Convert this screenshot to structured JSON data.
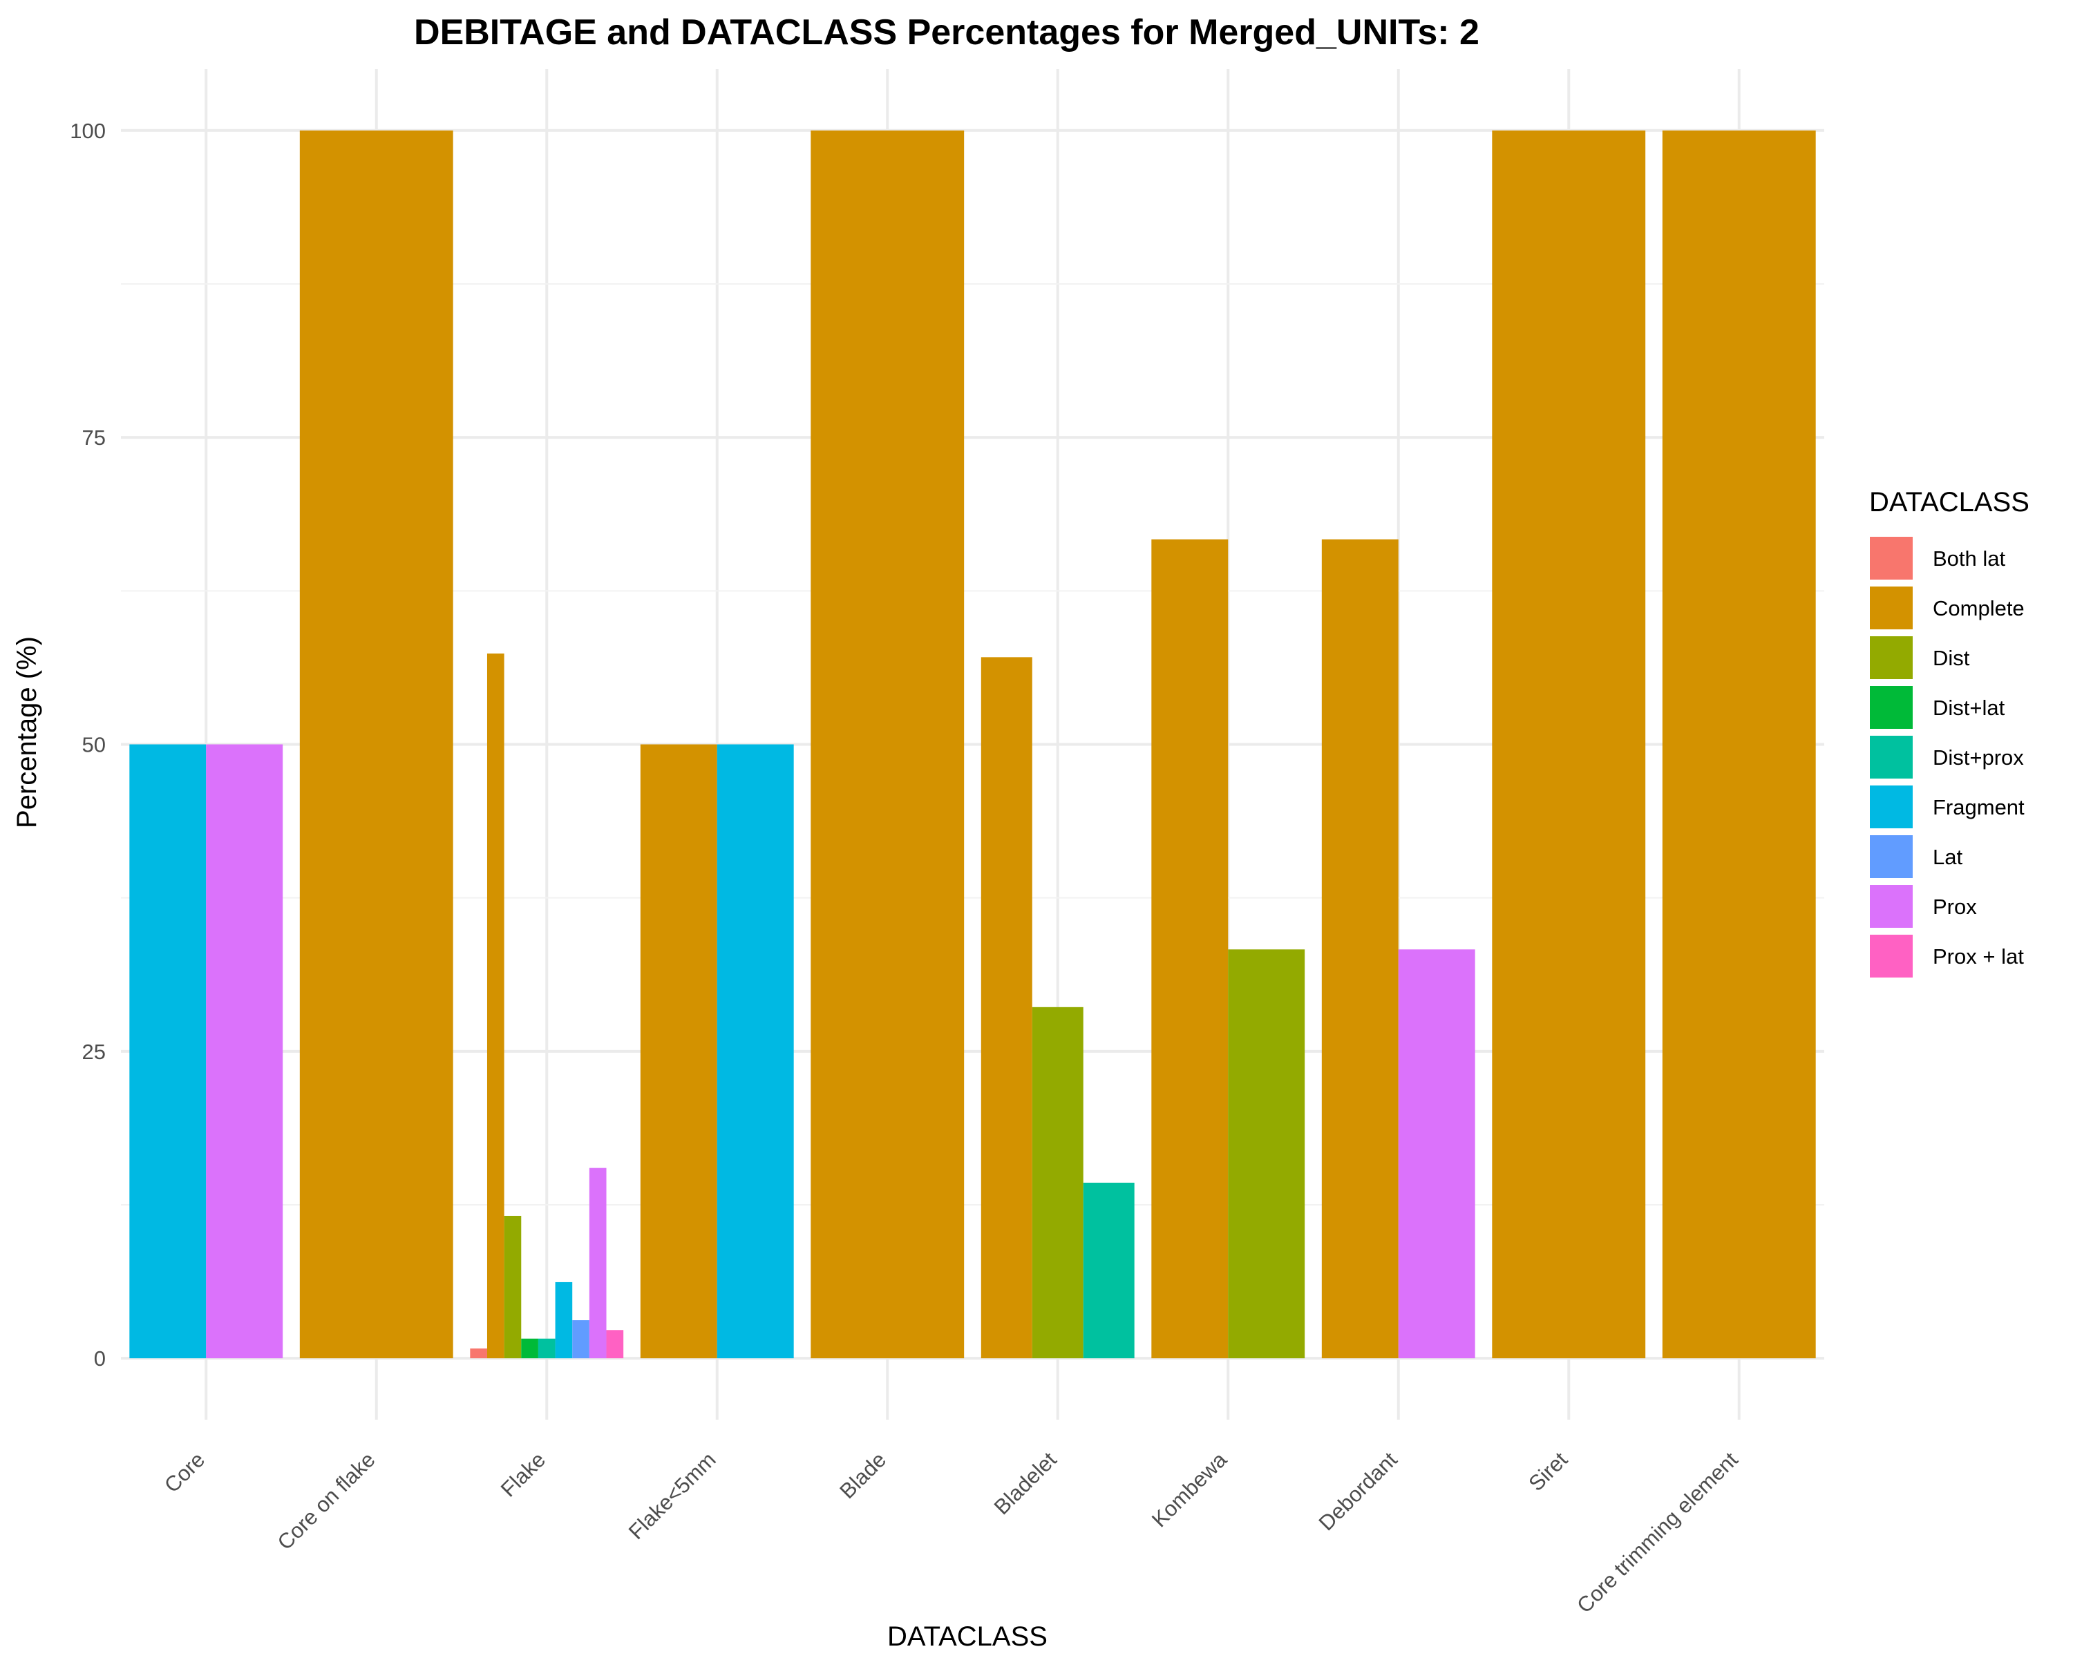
{
  "chart_data": {
    "type": "bar",
    "title": "DEBITAGE and DATACLASS Percentages for Merged_UNITs: 2",
    "xlabel": "DATACLASS",
    "ylabel": "Percentage (%)",
    "ylim": [
      -5,
      105
    ],
    "yticks": [
      0,
      25,
      50,
      75,
      100
    ],
    "grid": true,
    "legend": {
      "title": "DATACLASS",
      "position": "right"
    },
    "categories": [
      "Core",
      "Core on flake",
      "Flake",
      "Flake<5mm",
      "Blade",
      "Bladelet",
      "Kombewa",
      "Debordant",
      "Siret",
      "Core trimming element"
    ],
    "classes": [
      {
        "name": "Both lat",
        "color": "#F8766D"
      },
      {
        "name": "Complete",
        "color": "#D39200"
      },
      {
        "name": "Dist",
        "color": "#93AA00"
      },
      {
        "name": "Dist+lat",
        "color": "#00BA38"
      },
      {
        "name": "Dist+prox",
        "color": "#00C19F"
      },
      {
        "name": "Fragment",
        "color": "#00B9E3"
      },
      {
        "name": "Lat",
        "color": "#619CFF"
      },
      {
        "name": "Prox",
        "color": "#DB72FB"
      },
      {
        "name": "Prox + lat",
        "color": "#FF61C3"
      }
    ],
    "groups": [
      {
        "category": "Core",
        "bars": [
          {
            "class": "Fragment",
            "value": 50
          },
          {
            "class": "Prox",
            "value": 50
          }
        ]
      },
      {
        "category": "Core on flake",
        "bars": [
          {
            "class": "Complete",
            "value": 100
          }
        ]
      },
      {
        "category": "Flake",
        "bars": [
          {
            "class": "Both lat",
            "value": 0.8
          },
          {
            "class": "Complete",
            "value": 57.4
          },
          {
            "class": "Dist",
            "value": 11.6
          },
          {
            "class": "Dist+lat",
            "value": 1.6
          },
          {
            "class": "Dist+prox",
            "value": 1.6
          },
          {
            "class": "Fragment",
            "value": 6.2
          },
          {
            "class": "Lat",
            "value": 3.1
          },
          {
            "class": "Prox",
            "value": 15.5
          },
          {
            "class": "Prox + lat",
            "value": 2.3
          }
        ]
      },
      {
        "category": "Flake<5mm",
        "bars": [
          {
            "class": "Complete",
            "value": 50
          },
          {
            "class": "Fragment",
            "value": 50
          }
        ]
      },
      {
        "category": "Blade",
        "bars": [
          {
            "class": "Complete",
            "value": 100
          }
        ]
      },
      {
        "category": "Bladelet",
        "bars": [
          {
            "class": "Complete",
            "value": 57.1
          },
          {
            "class": "Dist",
            "value": 28.6
          },
          {
            "class": "Dist+prox",
            "value": 14.3
          }
        ]
      },
      {
        "category": "Kombewa",
        "bars": [
          {
            "class": "Complete",
            "value": 66.7
          },
          {
            "class": "Dist",
            "value": 33.3
          }
        ]
      },
      {
        "category": "Debordant",
        "bars": [
          {
            "class": "Complete",
            "value": 66.7
          },
          {
            "class": "Prox",
            "value": 33.3
          }
        ]
      },
      {
        "category": "Siret",
        "bars": [
          {
            "class": "Complete",
            "value": 100
          }
        ]
      },
      {
        "category": "Core trimming element",
        "bars": [
          {
            "class": "Complete",
            "value": 100
          }
        ]
      }
    ]
  }
}
